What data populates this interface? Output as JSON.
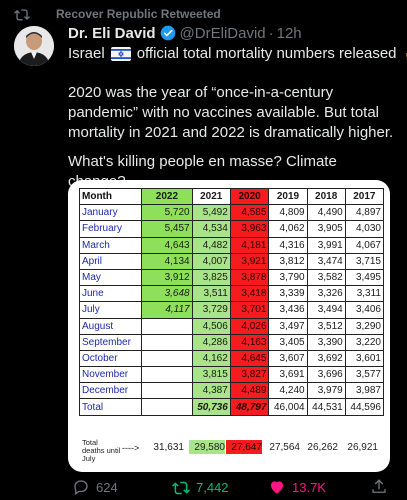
{
  "retweet_label": "Recover Republic Retweeted",
  "tweet": {
    "author_name": "Dr. Eli David",
    "handle": "@DrEliDavid",
    "dot": "·",
    "time": "12h",
    "line1_pre": "Israel",
    "line1_post": "official total mortality numbers released",
    "p1": "2020 was the year of “once-in-a-century pandemic” with no vaccines available. But total mortality in 2021 and 2022 is dramatically higher.",
    "p2": "What's killing people en masse? Climate change?"
  },
  "table": {
    "headers": [
      "Month",
      "2022",
      "2021",
      "2020",
      "2019",
      "2018",
      "2017"
    ],
    "rows": [
      {
        "month": "January",
        "v": [
          "5,720",
          "5,492",
          "4,585",
          "4,809",
          "4,490",
          "4,897"
        ]
      },
      {
        "month": "February",
        "v": [
          "5,457",
          "4,534",
          "3,963",
          "4,062",
          "3,905",
          "4,030"
        ]
      },
      {
        "month": "March",
        "v": [
          "4,643",
          "4,482",
          "4,181",
          "4,316",
          "3,991",
          "4,067"
        ]
      },
      {
        "month": "April",
        "v": [
          "4,134",
          "4,007",
          "3,921",
          "3,812",
          "3,474",
          "3,715"
        ]
      },
      {
        "month": "May",
        "v": [
          "3,912",
          "3,825",
          "3,878",
          "3,790",
          "3,582",
          "3,495"
        ]
      },
      {
        "month": "June",
        "v": [
          "3,648",
          "3,511",
          "3,418",
          "3,339",
          "3,326",
          "3,311"
        ]
      },
      {
        "month": "July",
        "v": [
          "4,117",
          "3,729",
          "3,701",
          "3,436",
          "3,494",
          "3,406"
        ]
      },
      {
        "month": "August",
        "v": [
          "",
          "4,506",
          "4,026",
          "3,497",
          "3,512",
          "3,290"
        ]
      },
      {
        "month": "September",
        "v": [
          "",
          "4,286",
          "4,163",
          "3,405",
          "3,390",
          "3,220"
        ]
      },
      {
        "month": "October",
        "v": [
          "",
          "4,162",
          "4,645",
          "3,607",
          "3,692",
          "3,601"
        ]
      },
      {
        "month": "November",
        "v": [
          "",
          "3,815",
          "3,827",
          "3,691",
          "3,696",
          "3,577"
        ]
      },
      {
        "month": "December",
        "v": [
          "",
          "4,387",
          "4,489",
          "4,240",
          "3,979",
          "3,987"
        ]
      }
    ],
    "total": {
      "month": "Total",
      "v": [
        "",
        "50,736",
        "48,797",
        "46,004",
        "44,531",
        "44,596"
      ]
    },
    "deaths_label": "Total deaths until July",
    "deaths_arrow": "---->",
    "deaths_values": [
      "31,631",
      "29,580",
      "27,647",
      "27,564",
      "26,262",
      "26,921"
    ]
  },
  "actions": {
    "replies": "624",
    "retweets": "7,442",
    "likes": "13.7K"
  },
  "colors": {
    "background": "#000000",
    "muted": "#71767b",
    "retweet_green": "#00ba7c",
    "like_pink": "#f91880",
    "verified_blue": "#1d9bf0",
    "cell_green": "#8ee05b",
    "cell_red": "#f41c1c"
  }
}
